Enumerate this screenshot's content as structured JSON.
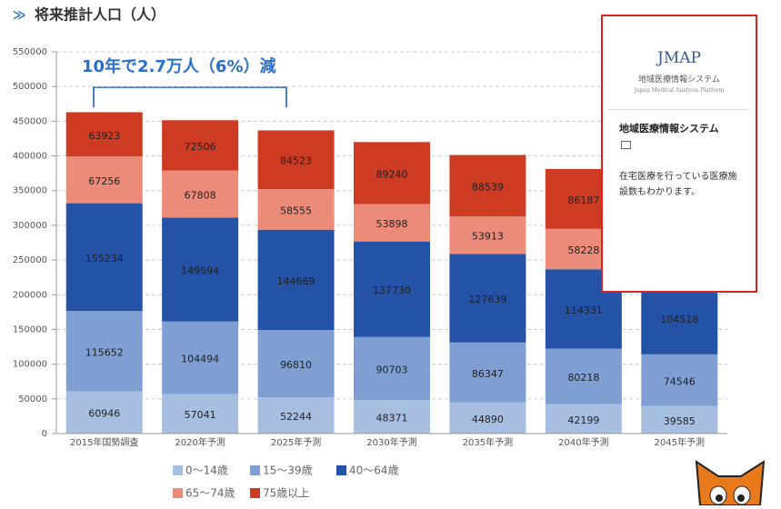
{
  "chart_data": {
    "type": "stacked-bar",
    "title": "将来推計人口（人）",
    "annotation": "10年で2.7万人（6%）減",
    "categories": [
      "2015年国勢調査",
      "2020年予測",
      "2025年予測",
      "2030年予測",
      "2035年予測",
      "2040年予測",
      "2045年予測"
    ],
    "series": [
      {
        "name": "0〜14歳",
        "color": "#a6bfe0",
        "values": [
          60946,
          57041,
          52244,
          48371,
          44890,
          42199,
          39585
        ]
      },
      {
        "name": "15〜39歳",
        "color": "#7f9fd3",
        "values": [
          115652,
          104494,
          96810,
          90703,
          86347,
          80218,
          74546
        ]
      },
      {
        "name": "40〜64歳",
        "color": "#2452a6",
        "values": [
          155234,
          149594,
          144669,
          137730,
          127639,
          114331,
          104518
        ]
      },
      {
        "name": "65〜74歳",
        "color": "#ec8b79",
        "values": [
          67256,
          67808,
          58555,
          53898,
          53913,
          58228,
          null
        ]
      },
      {
        "name": "75歳以上",
        "color": "#cc3b22",
        "values": [
          63923,
          72506,
          84523,
          89240,
          88539,
          86187,
          null
        ]
      }
    ],
    "ylim": [
      0,
      550000
    ],
    "yticks": [
      0,
      50000,
      100000,
      150000,
      200000,
      250000,
      300000,
      350000,
      400000,
      450000,
      500000,
      550000
    ],
    "grid": true
  },
  "popup": {
    "logo": "JMAP",
    "logo_subtitle": "地域医療情報システム",
    "logo_english": "Japan Medical Analysis Platform",
    "heading": "地域医療情報システム",
    "text": "在宅医療を行っている医療施設数もわかります。"
  }
}
